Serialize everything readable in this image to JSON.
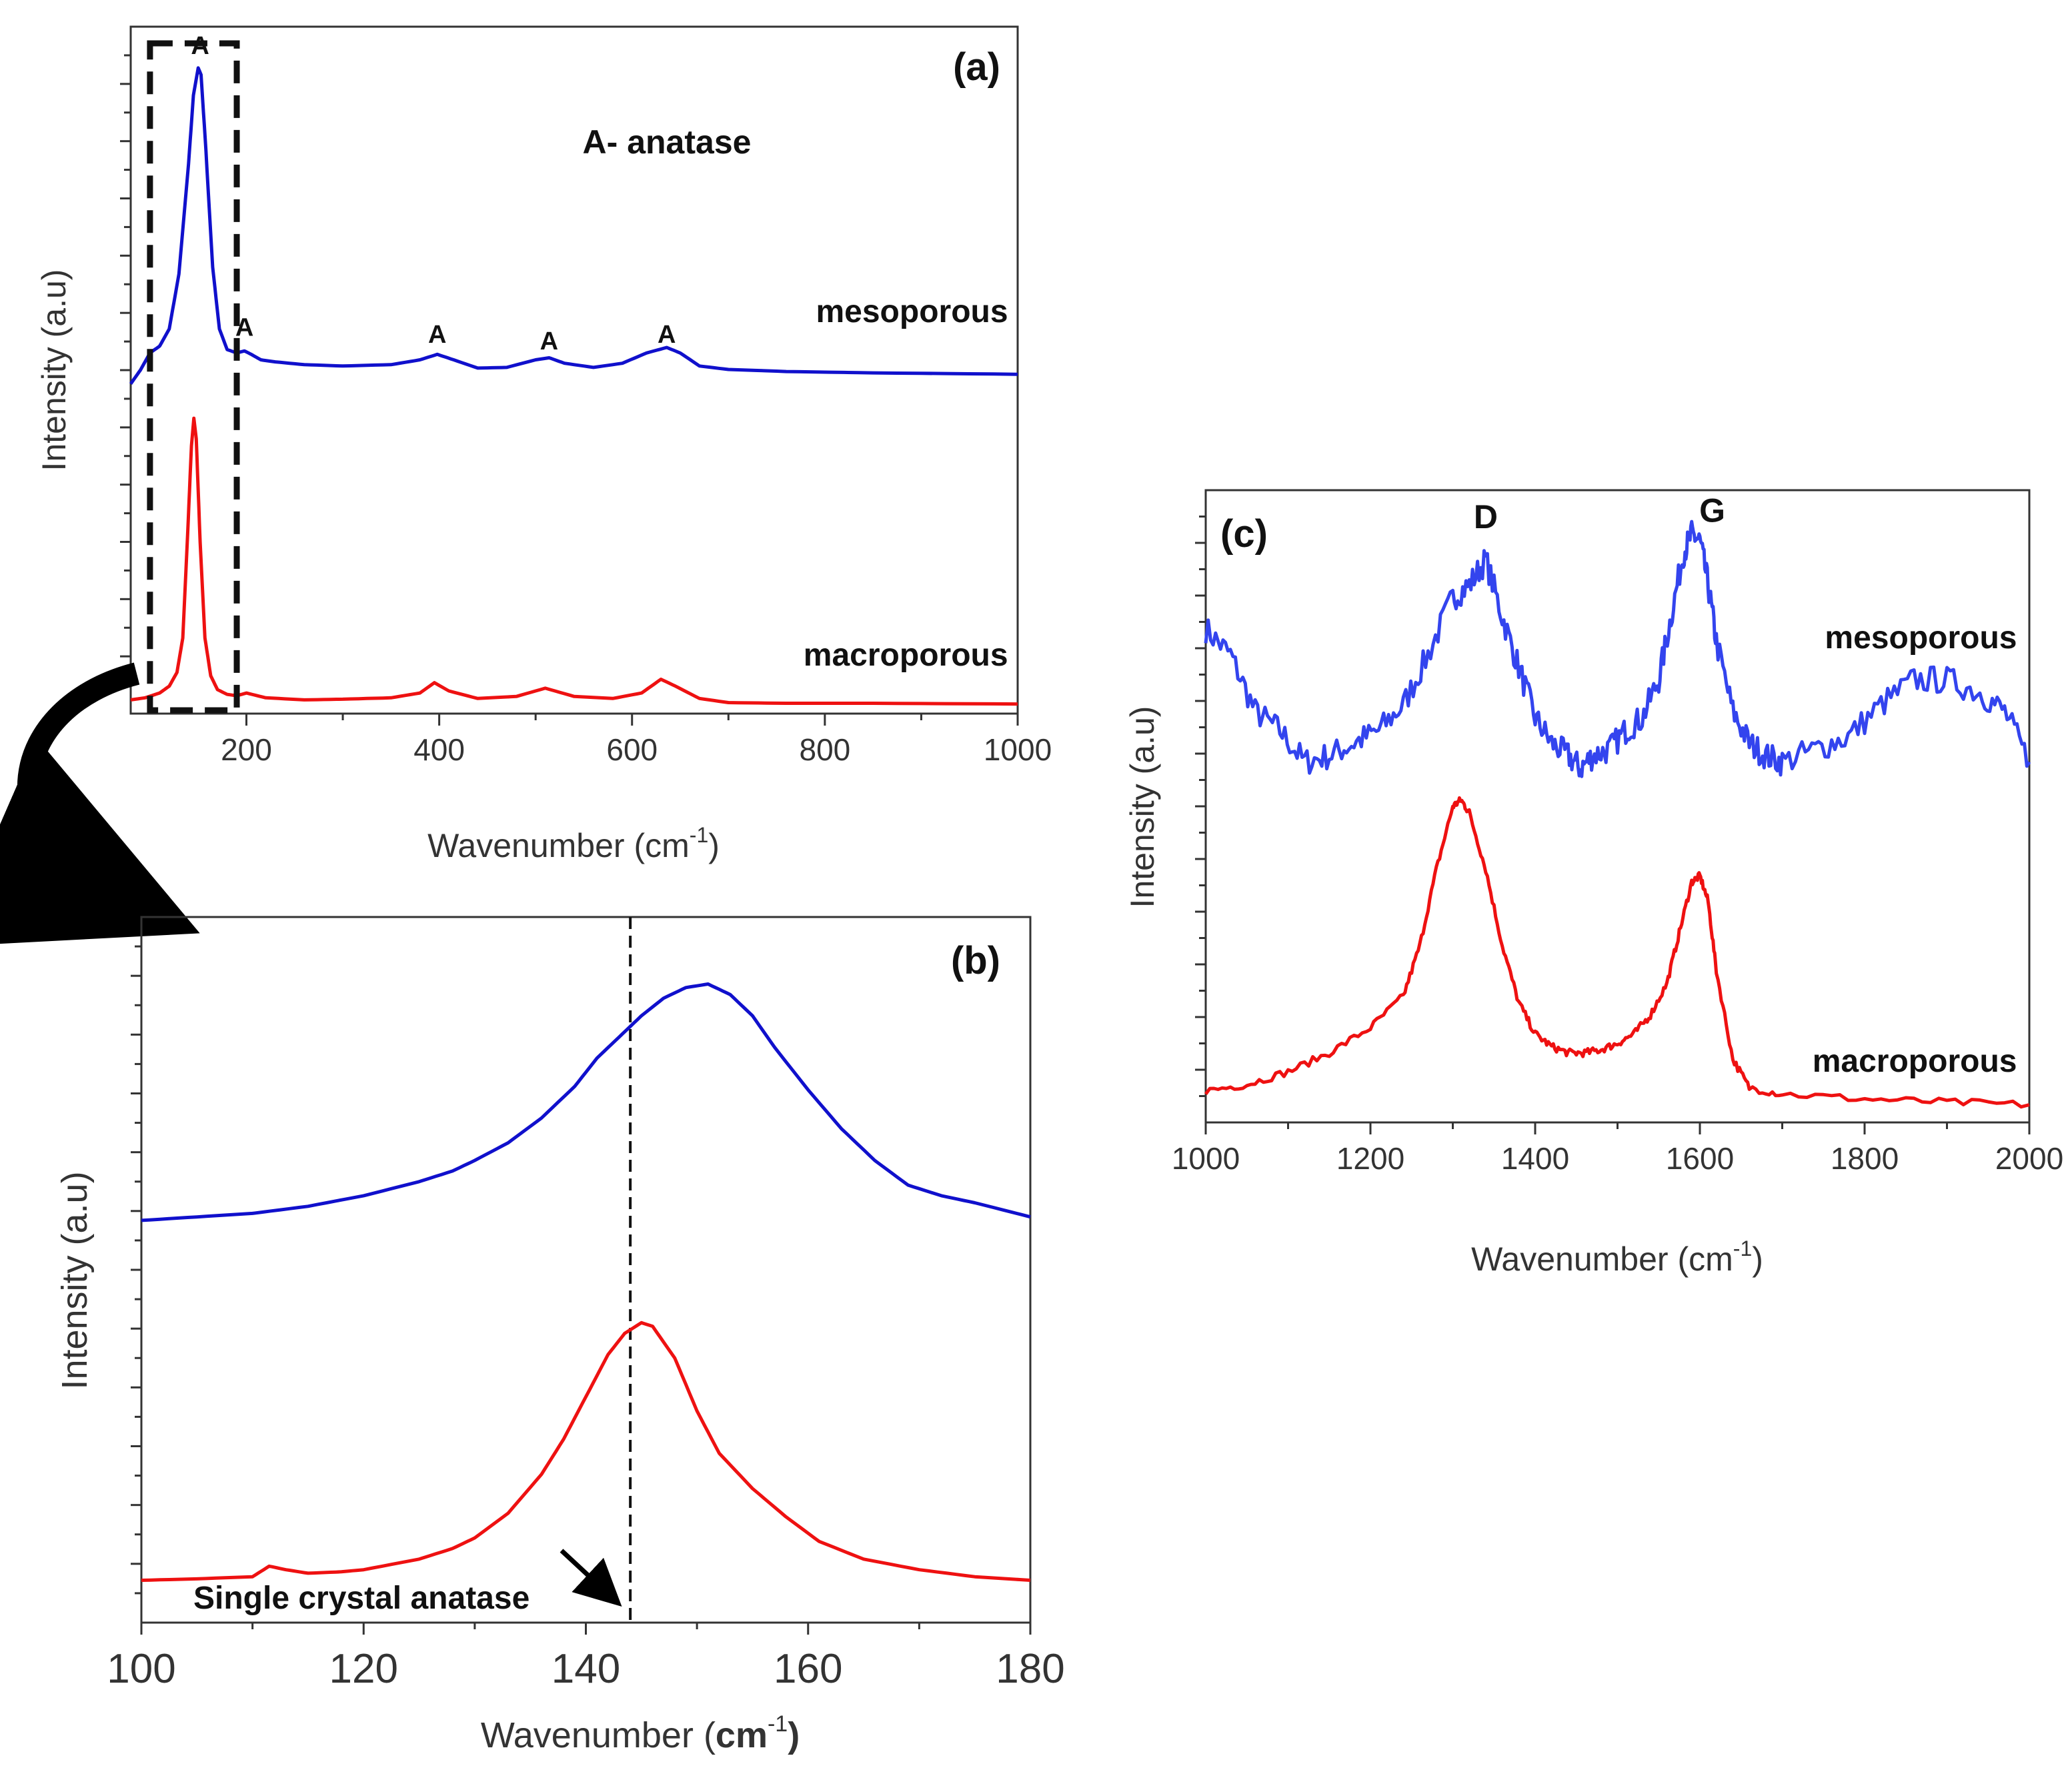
{
  "colors": {
    "mesoporous": "#1010cc",
    "macroporous": "#ee1111",
    "mesoporous_c": "#3344ee"
  },
  "chart_data": [
    {
      "id": "a",
      "type": "line",
      "panel_label": "(a)",
      "xlabel": "Wavenumber (cm",
      "xlabel_sup": "-1",
      "xlabel_end": ")",
      "ylabel": "Intensity (a.u)",
      "xlim": [
        80,
        1000
      ],
      "ylim": [
        0,
        100
      ],
      "xticks": [
        200,
        400,
        600,
        800,
        1000
      ],
      "annotation": "A- anatase",
      "peak_labels": [
        {
          "text": "A",
          "x": 152,
          "y": 96
        },
        {
          "text": "A",
          "x": 198,
          "y": 55
        },
        {
          "text": "A",
          "x": 398,
          "y": 54
        },
        {
          "text": "A",
          "x": 514,
          "y": 53
        },
        {
          "text": "A",
          "x": 636,
          "y": 54
        }
      ],
      "series": [
        {
          "name": "mesoporous",
          "color_key": "mesoporous",
          "label_at": [
            990,
            57
          ],
          "x": [
            80,
            90,
            100,
            110,
            120,
            130,
            140,
            145,
            150,
            153,
            158,
            165,
            172,
            180,
            190,
            198,
            205,
            215,
            230,
            260,
            300,
            350,
            380,
            398,
            415,
            440,
            470,
            500,
            514,
            530,
            560,
            590,
            615,
            636,
            650,
            670,
            700,
            760,
            850,
            1000
          ],
          "values": [
            48,
            50,
            52.5,
            53.5,
            56,
            64,
            80,
            90,
            94,
            93,
            82,
            65,
            56,
            53,
            52.5,
            52.8,
            52.3,
            51.5,
            51.2,
            50.8,
            50.6,
            50.8,
            51.5,
            52.3,
            51.5,
            50.3,
            50.4,
            51.5,
            51.8,
            51,
            50.4,
            51,
            52.5,
            53.3,
            52.5,
            50.6,
            50.1,
            49.8,
            49.6,
            49.4
          ]
        },
        {
          "name": "macroporous",
          "color_key": "macroporous",
          "label_at": [
            990,
            7
          ],
          "x": [
            80,
            95,
            110,
            120,
            128,
            134,
            139,
            143,
            145.5,
            148,
            152,
            157,
            163,
            170,
            180,
            190,
            200,
            220,
            260,
            300,
            350,
            380,
            395,
            410,
            440,
            480,
            510,
            540,
            580,
            610,
            630,
            645,
            670,
            700,
            760,
            850,
            1000
          ],
          "values": [
            2,
            2.3,
            3,
            4,
            6,
            11,
            26,
            39,
            43,
            40,
            25,
            11,
            5.5,
            3.5,
            2.8,
            2.6,
            3,
            2.3,
            2,
            2.1,
            2.3,
            3,
            4.5,
            3.3,
            2.2,
            2.5,
            3.7,
            2.5,
            2.2,
            3,
            5,
            4,
            2.2,
            1.6,
            1.5,
            1.5,
            1.4
          ]
        }
      ],
      "inset_box": {
        "x0": 100,
        "x1": 190
      }
    },
    {
      "id": "b",
      "type": "line",
      "panel_label": "(b)",
      "xlabel": "Wavenumber (",
      "xlabel_unit": "cm",
      "xlabel_sup": "-1",
      "xlabel_end": ")",
      "ylabel": "Intensity (a.u)",
      "xlim": [
        100,
        180
      ],
      "ylim": [
        0,
        100
      ],
      "xticks": [
        100,
        120,
        140,
        160,
        180
      ],
      "reference_line_x": 144,
      "annotation": "Single crystal anatase",
      "series": [
        {
          "name": "mesoporous",
          "color_key": "mesoporous",
          "x": [
            100,
            105,
            110,
            115,
            120,
            125,
            128,
            130,
            133,
            136,
            139,
            141,
            143,
            145,
            147,
            149,
            151,
            153,
            155,
            157,
            160,
            163,
            166,
            169,
            172,
            175,
            180
          ],
          "values": [
            57,
            57.5,
            58,
            59,
            60.5,
            62.5,
            64,
            65.5,
            68,
            71.5,
            76,
            80,
            83,
            86,
            88.5,
            90,
            90.5,
            89,
            86,
            81.5,
            75.5,
            70,
            65.5,
            62,
            60.5,
            59.5,
            57.5
          ]
        },
        {
          "name": "macroporous",
          "color_key": "macroporous",
          "x": [
            100,
            105,
            110,
            111.5,
            113,
            115,
            118,
            120,
            125,
            128,
            130,
            133,
            136,
            138,
            140,
            142,
            143.5,
            145,
            146,
            148,
            150,
            152,
            155,
            158,
            161,
            165,
            170,
            175,
            180
          ],
          "values": [
            6,
            6.2,
            6.5,
            8,
            7.5,
            7,
            7.2,
            7.5,
            9,
            10.5,
            12,
            15.5,
            21,
            26,
            32,
            38,
            41,
            42.5,
            42,
            37.5,
            30,
            24,
            19,
            15,
            11.5,
            9,
            7.5,
            6.5,
            6
          ]
        }
      ]
    },
    {
      "id": "c",
      "type": "line",
      "panel_label": "(c)",
      "xlabel": "Wavenumber (cm",
      "xlabel_sup": "-1",
      "xlabel_end": ")",
      "ylabel": "Intensity (a.u)",
      "xlim": [
        1000,
        2000
      ],
      "ylim": [
        0,
        100
      ],
      "xticks": [
        1000,
        1200,
        1400,
        1600,
        1800,
        2000
      ],
      "peak_labels": [
        {
          "text": "D",
          "x": 1340,
          "y": 94
        },
        {
          "text": "G",
          "x": 1615,
          "y": 95
        }
      ],
      "series": [
        {
          "name": "mesoporous",
          "color_key": "mesoporous_c",
          "label_at": [
            1985,
            75
          ],
          "noise": 2.2,
          "x": [
            1000,
            1030,
            1060,
            1090,
            1120,
            1150,
            1180,
            1210,
            1240,
            1270,
            1300,
            1320,
            1340,
            1360,
            1380,
            1400,
            1420,
            1440,
            1455,
            1470,
            1490,
            1510,
            1530,
            1550,
            1565,
            1580,
            1590,
            1600,
            1610,
            1620,
            1640,
            1660,
            1680,
            1700,
            1740,
            1780,
            1820,
            1860,
            1900,
            1940,
            1970,
            2000
          ],
          "values": [
            78,
            74,
            65,
            62,
            57,
            58,
            60,
            62,
            66,
            74,
            83,
            85,
            89,
            80,
            72,
            64,
            60,
            58,
            56,
            58,
            59,
            62,
            64,
            70,
            80,
            90,
            93,
            92,
            85,
            76,
            65,
            60,
            58,
            57,
            59,
            61,
            66,
            70,
            70,
            68,
            65,
            57
          ]
        },
        {
          "name": "macroporous",
          "color_key": "macroporous",
          "label_at": [
            1985,
            8
          ],
          "noise": 0.6,
          "x": [
            1000,
            1050,
            1100,
            1150,
            1200,
            1240,
            1260,
            1280,
            1300,
            1310,
            1320,
            1340,
            1360,
            1380,
            1400,
            1420,
            1440,
            1460,
            1480,
            1500,
            1520,
            1540,
            1560,
            1575,
            1590,
            1600,
            1610,
            1620,
            1640,
            1660,
            1700,
            1800,
            1900,
            2000
          ],
          "values": [
            5,
            6,
            8,
            11,
            15,
            20,
            28,
            40,
            50,
            51,
            49,
            40,
            28,
            19,
            14,
            12,
            11,
            11,
            11.5,
            12.5,
            14,
            17,
            22,
            30,
            38,
            39,
            35,
            24,
            10,
            5.5,
            4.5,
            3.7,
            3.2,
            2.8
          ]
        }
      ]
    }
  ]
}
